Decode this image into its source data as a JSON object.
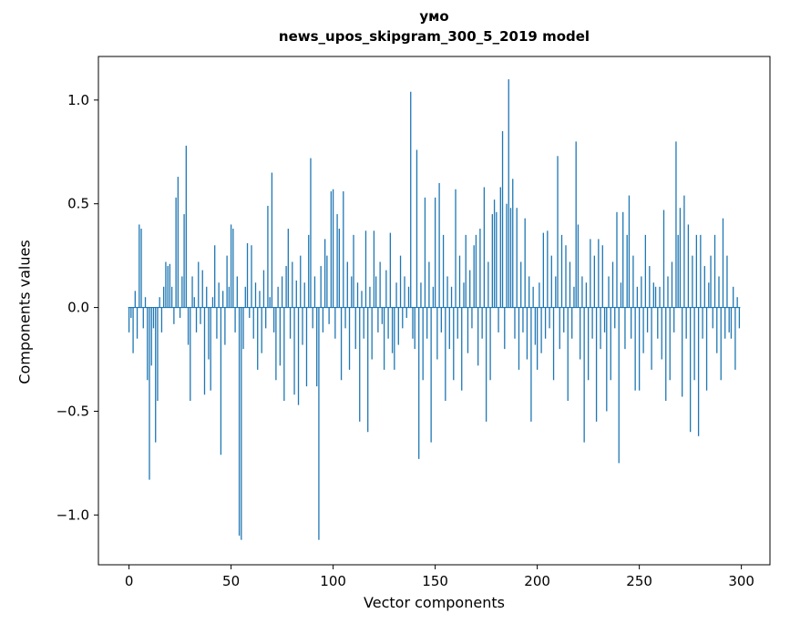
{
  "accent_color": "#1f77b4",
  "chart_data": {
    "type": "bar",
    "title": "умо",
    "subtitle": "news_upos_skipgram_300_5_2019 model",
    "xlabel": "Vector components",
    "ylabel": "Components values",
    "xlim": [
      -15,
      314
    ],
    "ylim": [
      -1.24,
      1.21
    ],
    "x_ticks": [
      0,
      50,
      100,
      150,
      200,
      250,
      300
    ],
    "y_ticks": [
      -1.0,
      -0.5,
      0.0,
      0.5,
      1.0
    ],
    "y_tick_labels": [
      "−1.0",
      "−0.5",
      "0.0",
      "0.5",
      "1.0"
    ],
    "grid": false,
    "legend": "none",
    "bar_color": "#1f77b4",
    "values": [
      -0.12,
      -0.05,
      -0.22,
      0.08,
      -0.15,
      0.4,
      0.38,
      -0.1,
      0.05,
      -0.35,
      -0.83,
      -0.28,
      -0.1,
      -0.65,
      -0.45,
      0.05,
      -0.12,
      0.1,
      0.22,
      0.2,
      0.21,
      0.1,
      -0.08,
      0.53,
      0.63,
      -0.05,
      0.15,
      0.45,
      0.78,
      -0.18,
      -0.45,
      0.15,
      0.05,
      -0.12,
      0.22,
      -0.08,
      0.18,
      -0.42,
      0.1,
      -0.25,
      -0.4,
      0.05,
      0.3,
      -0.15,
      0.12,
      -0.71,
      0.08,
      -0.18,
      0.25,
      0.1,
      0.4,
      0.38,
      -0.12,
      0.15,
      -1.1,
      -1.12,
      -0.2,
      0.1,
      0.31,
      -0.05,
      0.3,
      -0.15,
      0.12,
      -0.3,
      0.08,
      -0.22,
      0.18,
      -0.1,
      0.49,
      0.05,
      0.65,
      -0.12,
      -0.35,
      0.1,
      -0.28,
      0.15,
      -0.45,
      0.2,
      0.38,
      -0.15,
      0.22,
      -0.42,
      0.13,
      -0.47,
      0.25,
      -0.18,
      0.12,
      -0.38,
      0.35,
      0.72,
      -0.1,
      0.15,
      -0.38,
      -1.12,
      0.2,
      -0.12,
      0.33,
      0.25,
      -0.08,
      0.56,
      0.57,
      -0.15,
      0.45,
      0.38,
      -0.35,
      0.56,
      -0.1,
      0.22,
      -0.3,
      0.15,
      0.35,
      -0.2,
      0.12,
      -0.55,
      0.08,
      -0.15,
      0.37,
      -0.6,
      0.1,
      -0.25,
      0.37,
      0.15,
      -0.12,
      0.22,
      -0.08,
      -0.3,
      0.18,
      -0.15,
      0.36,
      -0.22,
      -0.3,
      0.12,
      -0.18,
      0.25,
      -0.1,
      0.15,
      -0.05,
      0.1,
      1.04,
      -0.15,
      -0.2,
      0.76,
      -0.73,
      0.12,
      -0.35,
      0.53,
      -0.15,
      0.22,
      -0.65,
      0.1,
      0.53,
      -0.25,
      0.6,
      -0.12,
      0.35,
      -0.45,
      0.15,
      -0.2,
      0.1,
      -0.35,
      0.57,
      -0.15,
      0.25,
      -0.4,
      0.12,
      0.35,
      -0.22,
      0.18,
      -0.1,
      0.3,
      0.35,
      -0.28,
      0.38,
      -0.15,
      0.58,
      -0.55,
      0.22,
      -0.35,
      0.45,
      0.52,
      0.46,
      -0.12,
      0.58,
      0.85,
      -0.2,
      0.5,
      1.1,
      0.48,
      0.62,
      -0.15,
      0.48,
      -0.3,
      0.22,
      -0.12,
      0.43,
      -0.25,
      0.15,
      -0.55,
      0.1,
      -0.18,
      -0.3,
      0.12,
      -0.22,
      0.36,
      -0.15,
      0.37,
      -0.1,
      0.25,
      -0.35,
      0.15,
      0.73,
      -0.2,
      0.35,
      -0.12,
      0.3,
      -0.45,
      0.22,
      -0.15,
      0.1,
      0.8,
      0.4,
      -0.25,
      0.15,
      -0.65,
      0.12,
      -0.35,
      0.33,
      -0.15,
      0.25,
      -0.55,
      0.33,
      -0.2,
      0.3,
      -0.12,
      -0.5,
      0.15,
      -0.35,
      0.22,
      -0.1,
      0.46,
      -0.75,
      0.12,
      0.46,
      -0.2,
      0.35,
      0.54,
      -0.15,
      0.25,
      -0.4,
      0.1,
      -0.4,
      0.15,
      -0.22,
      0.35,
      -0.12,
      0.2,
      -0.3,
      0.12,
      0.1,
      -0.15,
      0.1,
      -0.25,
      0.47,
      -0.45,
      0.15,
      -0.35,
      0.22,
      -0.12,
      0.8,
      0.35,
      0.48,
      -0.43,
      0.54,
      -0.15,
      0.4,
      -0.6,
      0.25,
      -0.35,
      0.35,
      -0.62,
      0.35,
      -0.15,
      0.2,
      -0.4,
      0.12,
      0.25,
      -0.1,
      0.35,
      -0.22,
      0.15,
      -0.35,
      0.43,
      -0.15,
      0.25,
      -0.12,
      -0.15,
      0.1,
      -0.3,
      0.05,
      -0.1
    ]
  }
}
